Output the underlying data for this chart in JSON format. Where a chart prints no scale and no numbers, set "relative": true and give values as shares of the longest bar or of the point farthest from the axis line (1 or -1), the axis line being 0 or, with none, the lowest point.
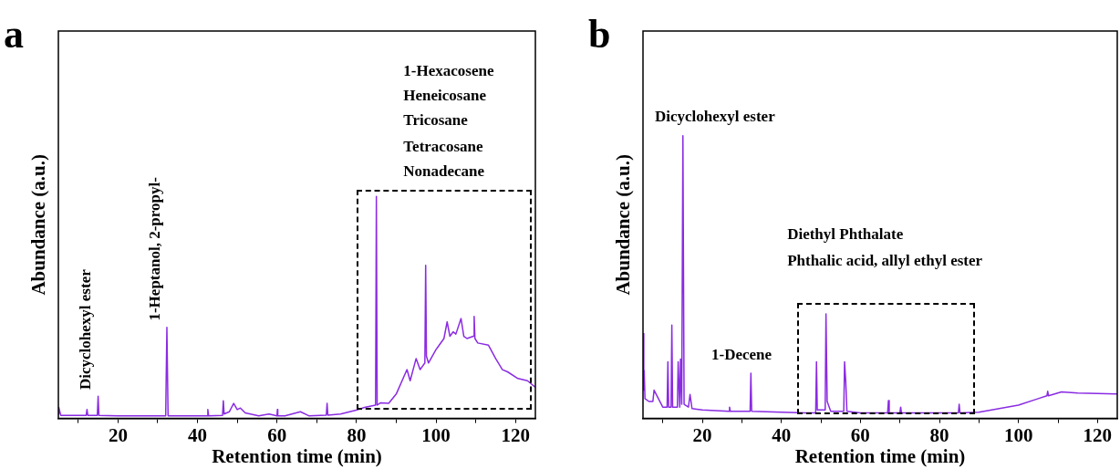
{
  "chart_data": [
    {
      "type": "line",
      "title": "a",
      "xlabel": "Retention time (min)",
      "ylabel": "Abundance (a.u.)",
      "relative": true,
      "xlim": [
        5,
        125
      ],
      "xticks": [
        {
          "value": 10,
          "label": null
        },
        20,
        {
          "value": 30,
          "label": null
        },
        40,
        {
          "value": 50,
          "label": null
        },
        60,
        {
          "value": 70,
          "label": null
        },
        80,
        {
          "value": 90,
          "label": null
        },
        100,
        {
          "value": 110,
          "label": null
        },
        120
      ],
      "marker": "none",
      "grid": false,
      "legend": false,
      "annotations": [
        "Dicyclohexyl ester",
        "1-Heptanol, 2-propyl-",
        "1-Hexacosene",
        "Heneicosane",
        "Tricosane",
        "Tetracosane",
        "Nonadecane"
      ],
      "series": [
        {
          "color": "#8a2be2",
          "x": [
            5,
            5.1,
            5.6,
            10,
            12,
            12.2,
            12.4,
            14.8,
            15,
            15.2,
            20,
            30,
            32,
            32.3,
            32.6,
            40,
            42.4,
            42.6,
            42.8,
            46.3,
            46.5,
            46.7,
            48,
            49.1,
            50,
            50.8,
            52,
            55.4,
            58,
            60,
            60.1,
            60.2,
            62,
            65.9,
            68,
            72.4,
            72.6,
            72.8,
            76,
            79.9,
            82,
            84.8,
            85,
            85.2,
            86,
            88.1,
            90,
            92.7,
            93.5,
            95,
            96,
            97.2,
            97.4,
            97.6,
            98.1,
            100,
            100.4,
            102,
            102.8,
            103.5,
            104.3,
            105,
            106.3,
            107,
            107.8,
            109.4,
            109.6,
            109.8,
            110.5,
            113.2,
            115,
            116.7,
            118,
            120.6,
            123,
            125
          ],
          "values": [
            0.02,
            0.05,
            0.014,
            0.014,
            0.014,
            0.04,
            0.014,
            0.014,
            0.1,
            0.014,
            0.012,
            0.012,
            0.012,
            0.41,
            0.012,
            0.012,
            0.012,
            0.04,
            0.012,
            0.014,
            0.08,
            0.02,
            0.03,
            0.068,
            0.04,
            0.047,
            0.025,
            0.012,
            0.02,
            0.012,
            0.04,
            0.012,
            0.012,
            0.03,
            0.012,
            0.015,
            0.068,
            0.015,
            0.02,
            0.037,
            0.05,
            0.06,
            1.0,
            0.06,
            0.07,
            0.068,
            0.11,
            0.22,
            0.17,
            0.27,
            0.22,
            0.25,
            0.69,
            0.28,
            0.25,
            0.31,
            0.32,
            0.36,
            0.435,
            0.37,
            0.39,
            0.38,
            0.45,
            0.37,
            0.36,
            0.37,
            0.46,
            0.36,
            0.34,
            0.33,
            0.27,
            0.22,
            0.21,
            0.18,
            0.17,
            0.14
          ]
        }
      ]
    },
    {
      "type": "line",
      "title": "b",
      "xlabel": "Retention time (min)",
      "ylabel": "Abundance (a.u.)",
      "relative": true,
      "xlim": [
        5,
        125
      ],
      "xticks": [
        {
          "value": 10,
          "label": null
        },
        20,
        {
          "value": 30,
          "label": null
        },
        40,
        {
          "value": 50,
          "label": null
        },
        60,
        {
          "value": 70,
          "label": null
        },
        80,
        {
          "value": 90,
          "label": null
        },
        100,
        {
          "value": 110,
          "label": null
        },
        120
      ],
      "marker": "none",
      "grid": false,
      "legend": false,
      "annotations": [
        "Dicyclohexyl ester",
        "1-Decene",
        "Diethyl Phthalate",
        "Phthalic acid, allyl ethyl ester"
      ],
      "series": [
        {
          "color": "#8a2be2",
          "x": [
            5,
            5.2,
            5.3,
            5.5,
            6.5,
            7.5,
            7.8,
            10,
            11.1,
            11.3,
            11.5,
            12.1,
            12.3,
            12.5,
            13.7,
            13.9,
            14.3,
            14.5,
            14.8,
            15.1,
            15.4,
            16.5,
            16.9,
            17.4,
            20,
            26.7,
            26.9,
            27.1,
            32.1,
            32.3,
            32.5,
            40,
            46,
            48.7,
            48.9,
            49.1,
            51.1,
            51.3,
            51.6,
            52.5,
            55.8,
            56,
            56.3,
            56.6,
            60,
            66.9,
            67.1,
            67.3,
            70,
            70.2,
            70.4,
            80,
            84.8,
            85,
            85.2,
            90,
            100,
            105,
            107.2,
            107.4,
            107.6,
            110.9,
            115,
            120,
            124.6,
            125
          ],
          "values": [
            0.3,
            0.1,
            0.17,
            0.07,
            0.06,
            0.06,
            0.1,
            0.04,
            0.04,
            0.2,
            0.04,
            0.04,
            0.33,
            0.04,
            0.04,
            0.2,
            0.04,
            0.21,
            0.05,
            1.0,
            0.05,
            0.04,
            0.085,
            0.035,
            0.03,
            0.025,
            0.04,
            0.025,
            0.025,
            0.16,
            0.025,
            0.022,
            0.02,
            0.02,
            0.2,
            0.03,
            0.03,
            0.37,
            0.06,
            0.025,
            0.025,
            0.2,
            0.13,
            0.025,
            0.02,
            0.02,
            0.063,
            0.02,
            0.02,
            0.04,
            0.02,
            0.02,
            0.02,
            0.05,
            0.02,
            0.022,
            0.047,
            0.07,
            0.08,
            0.096,
            0.08,
            0.094,
            0.09,
            0.088,
            0.087,
            0.087
          ]
        }
      ]
    }
  ]
}
